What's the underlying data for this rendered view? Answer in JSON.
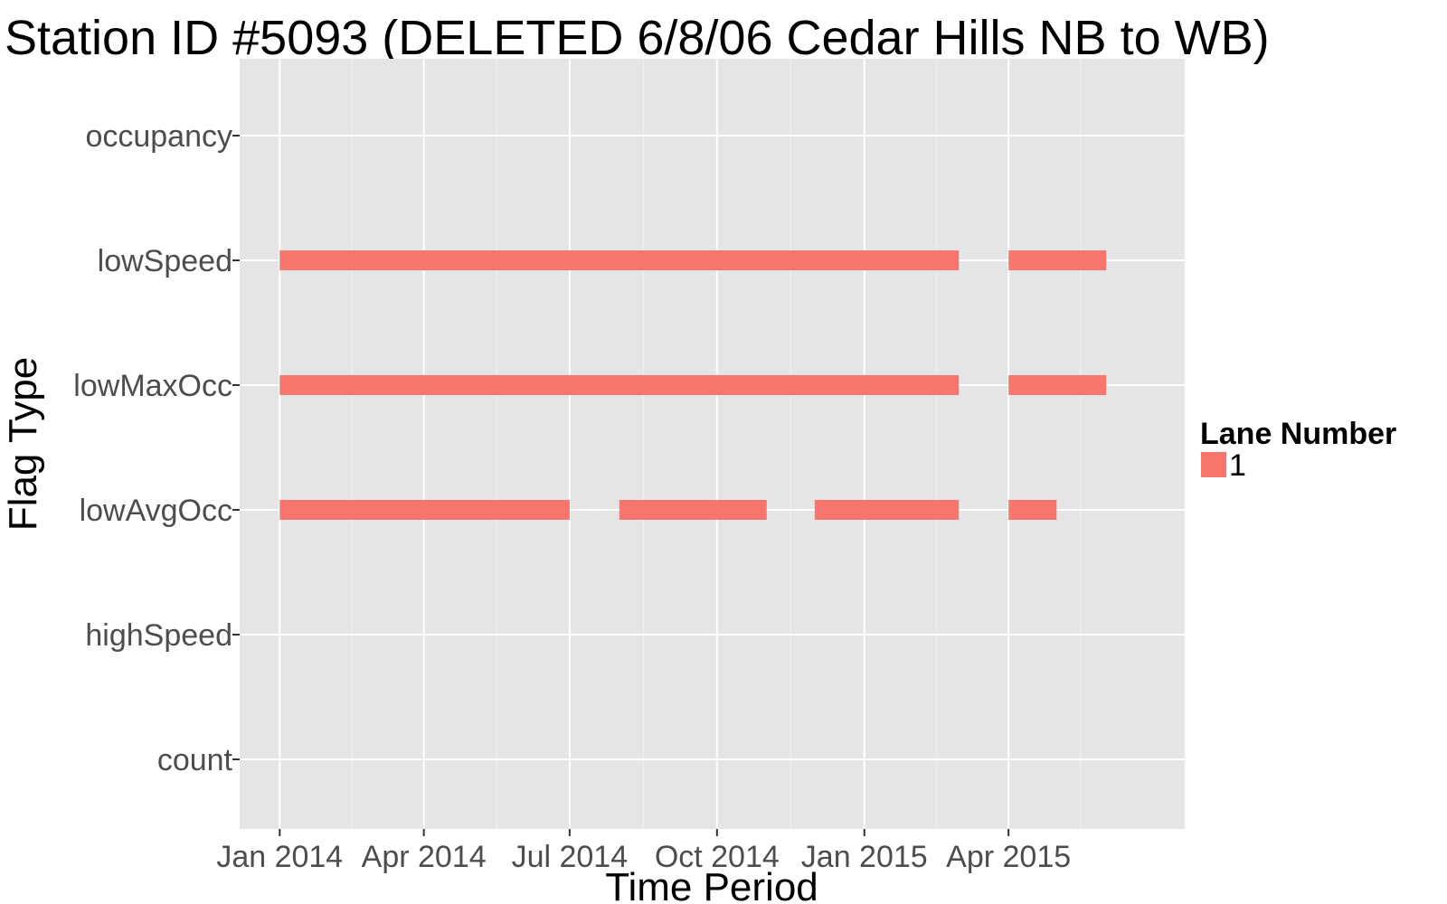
{
  "chart_data": {
    "type": "bar",
    "subtype": "timeline-segments",
    "title": "Station ID #5093 (DELETED 6/8/06 Cedar Hills NB to WB)",
    "xlabel": "Time Period",
    "ylabel": "Flag Type",
    "categories": [
      "occupancy",
      "lowSpeed",
      "lowMaxOcc",
      "lowAvgOcc",
      "highSpeed",
      "count"
    ],
    "x_ticks": [
      {
        "label": "Jan 2014",
        "date": "2014-01-01"
      },
      {
        "label": "Apr 2014",
        "date": "2014-04-01"
      },
      {
        "label": "Jul 2014",
        "date": "2014-07-01"
      },
      {
        "label": "Oct 2014",
        "date": "2014-10-01"
      },
      {
        "label": "Jan 2015",
        "date": "2015-01-01"
      },
      {
        "label": "Apr 2015",
        "date": "2015-04-01"
      }
    ],
    "xlim": [
      "2013-12-07",
      "2015-07-20"
    ],
    "grid": true,
    "legend": {
      "title": "Lane Number",
      "position": "right",
      "entries": [
        {
          "label": "1",
          "color": "#f8766d"
        }
      ]
    },
    "series": [
      {
        "name": "1",
        "color": "#f8766d",
        "segments": [
          {
            "flag": "lowSpeed",
            "start": "2014-01-01",
            "end": "2015-03-01"
          },
          {
            "flag": "lowSpeed",
            "start": "2015-04-01",
            "end": "2015-06-01"
          },
          {
            "flag": "lowMaxOcc",
            "start": "2014-01-01",
            "end": "2015-03-01"
          },
          {
            "flag": "lowMaxOcc",
            "start": "2015-04-01",
            "end": "2015-06-01"
          },
          {
            "flag": "lowAvgOcc",
            "start": "2014-01-01",
            "end": "2014-07-01"
          },
          {
            "flag": "lowAvgOcc",
            "start": "2014-08-01",
            "end": "2014-11-01"
          },
          {
            "flag": "lowAvgOcc",
            "start": "2014-12-01",
            "end": "2015-03-01"
          },
          {
            "flag": "lowAvgOcc",
            "start": "2015-04-01",
            "end": "2015-05-01"
          }
        ]
      }
    ]
  },
  "colors": {
    "panel_background": "#e5e5e5",
    "grid_line": "#ffffff",
    "lane_1": "#f8766d"
  }
}
